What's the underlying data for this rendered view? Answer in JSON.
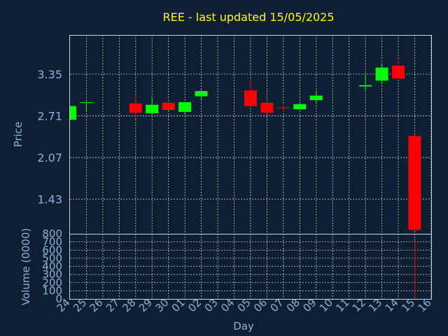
{
  "chart_data": {
    "type": "candlestick",
    "title": "REE - last updated 15/05/2025",
    "xlabel": "Day",
    "price_panel": {
      "ylabel": "Price",
      "ylim": [
        0.9,
        3.95
      ],
      "yticks": [
        1.43,
        2.07,
        2.71,
        3.35
      ],
      "ytick_labels": [
        "1.43",
        "2.07",
        "2.71",
        "3.35"
      ],
      "grid": true
    },
    "volume_panel": {
      "ylabel": "Volume (0000)",
      "ylim": [
        0,
        800
      ],
      "yticks": [
        0,
        100,
        200,
        300,
        400,
        500,
        600,
        700,
        800
      ],
      "ytick_labels": [
        "0",
        "100",
        "200",
        "300",
        "400",
        "500",
        "600",
        "700",
        "800"
      ],
      "grid": true
    },
    "x_tick_labels": [
      "24",
      "25",
      "26",
      "27",
      "28",
      "29",
      "30",
      "01",
      "02",
      "03",
      "04",
      "05",
      "06",
      "07",
      "08",
      "09",
      "10",
      "11",
      "12",
      "13",
      "14",
      "15",
      "16"
    ],
    "colors": {
      "up": "#00ff00",
      "down": "#ff0000",
      "background": "#0f1f33",
      "title": "#ffff00",
      "axis_text": "#8fb0d0"
    },
    "candles": [
      {
        "day": "24",
        "open": 2.65,
        "high": 2.86,
        "low": 2.64,
        "close": 2.86,
        "volume": 0
      },
      {
        "day": "25",
        "open": 2.91,
        "high": 2.93,
        "low": 2.78,
        "close": 2.92,
        "volume": 0
      },
      {
        "day": "28",
        "open": 2.9,
        "high": 3.02,
        "low": 2.66,
        "close": 2.76,
        "volume": 0
      },
      {
        "day": "29",
        "open": 2.75,
        "high": 3.0,
        "low": 2.73,
        "close": 2.88,
        "volume": 0
      },
      {
        "day": "30",
        "open": 2.91,
        "high": 2.95,
        "low": 2.79,
        "close": 2.8,
        "volume": 0
      },
      {
        "day": "01",
        "open": 2.77,
        "high": 2.92,
        "low": 2.73,
        "close": 2.92,
        "volume": 0
      },
      {
        "day": "02",
        "open": 3.01,
        "high": 3.13,
        "low": 2.95,
        "close": 3.09,
        "volume": 0
      },
      {
        "day": "05",
        "open": 3.1,
        "high": 3.27,
        "low": 2.86,
        "close": 2.86,
        "volume": 0
      },
      {
        "day": "06",
        "open": 2.91,
        "high": 2.91,
        "low": 2.75,
        "close": 2.76,
        "volume": 0
      },
      {
        "day": "07",
        "open": 2.84,
        "high": 2.88,
        "low": 2.77,
        "close": 2.83,
        "volume": 0
      },
      {
        "day": "08",
        "open": 2.81,
        "high": 2.9,
        "low": 2.8,
        "close": 2.89,
        "volume": 0
      },
      {
        "day": "09",
        "open": 2.95,
        "high": 3.09,
        "low": 2.91,
        "close": 3.02,
        "volume": 0
      },
      {
        "day": "12",
        "open": 3.16,
        "high": 3.33,
        "low": 3.1,
        "close": 3.18,
        "volume": 0
      },
      {
        "day": "13",
        "open": 3.25,
        "high": 3.51,
        "low": 3.22,
        "close": 3.45,
        "volume": 0
      },
      {
        "day": "14",
        "open": 3.48,
        "high": 3.57,
        "low": 3.28,
        "close": 3.28,
        "volume": 0
      },
      {
        "day": "15",
        "open": 2.4,
        "high": 2.43,
        "low": 0.95,
        "close": 0.96,
        "volume": 700
      }
    ]
  }
}
